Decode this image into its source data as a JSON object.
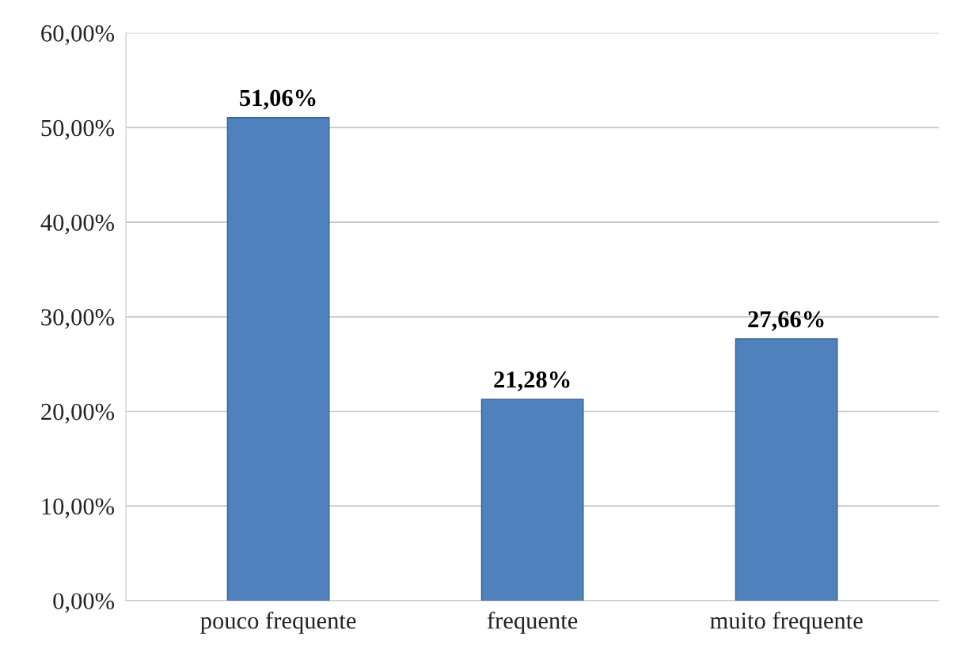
{
  "chart_data": {
    "type": "bar",
    "categories": [
      "pouco frequente",
      "frequente",
      "muito frequente"
    ],
    "values": [
      51.06,
      21.28,
      27.66
    ],
    "value_labels": [
      "51,06%",
      "21,28%",
      "27,66%"
    ],
    "color": "#4f81bd",
    "ylim": [
      0,
      60
    ],
    "yticks": [
      {
        "value": 0,
        "label": "0,00%"
      },
      {
        "value": 10,
        "label": "10,00%"
      },
      {
        "value": 20,
        "label": "20,00%"
      },
      {
        "value": 30,
        "label": "30,00%"
      },
      {
        "value": 40,
        "label": "40,00%"
      },
      {
        "value": 50,
        "label": "50,00%"
      },
      {
        "value": 60,
        "label": "60,00%"
      }
    ],
    "grid": "y"
  }
}
